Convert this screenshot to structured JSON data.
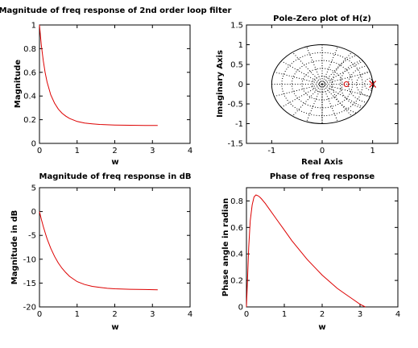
{
  "chart_data": [
    {
      "id": "mag",
      "type": "line",
      "title": "Magnitude of freq response of 2nd order loop filter",
      "xlabel": "w",
      "ylabel": "Magnitude",
      "xlim": [
        0,
        4
      ],
      "ylim": [
        0,
        1
      ],
      "xticks": [
        "0",
        "1",
        "2",
        "3",
        "4"
      ],
      "yticks": [
        "0",
        "0.2",
        "0.4",
        "0.6",
        "0.8",
        "1"
      ],
      "series": [
        {
          "color": "#dd0000",
          "x": [
            0,
            0.05,
            0.1,
            0.15,
            0.2,
            0.3,
            0.4,
            0.5,
            0.6,
            0.7,
            0.8,
            1.0,
            1.2,
            1.4,
            1.6,
            1.8,
            2.0,
            2.4,
            2.8,
            3.14
          ],
          "y": [
            1.0,
            0.83,
            0.7,
            0.6,
            0.52,
            0.41,
            0.34,
            0.29,
            0.255,
            0.23,
            0.21,
            0.185,
            0.172,
            0.165,
            0.16,
            0.157,
            0.155,
            0.153,
            0.152,
            0.152
          ]
        }
      ]
    },
    {
      "id": "pz",
      "type": "scatter",
      "title": "Pole-Zero plot of H(z)",
      "xlabel": "Real Axis",
      "ylabel": "Imaginary Axis",
      "xlim": [
        -1.5,
        1.5
      ],
      "ylim": [
        -1.5,
        1.5
      ],
      "xticks": [
        "-1",
        "0",
        "1"
      ],
      "yticks": [
        "-1.5",
        "-1",
        "-0.5",
        "0",
        "0.5",
        "1",
        "1.5"
      ],
      "zeros": [
        {
          "re": 0.48,
          "im": 0
        }
      ],
      "poles": [
        {
          "re": 1.0,
          "im": 0
        },
        {
          "re": 1.0,
          "im": 0
        }
      ]
    },
    {
      "id": "db",
      "type": "line",
      "title": "Magnitude of freq response in dB",
      "xlabel": "w",
      "ylabel": "Magnitude in dB",
      "xlim": [
        0,
        4
      ],
      "ylim": [
        -20,
        5
      ],
      "xticks": [
        "0",
        "1",
        "2",
        "3",
        "4"
      ],
      "yticks": [
        "-20",
        "-15",
        "-10",
        "-5",
        "0",
        "5"
      ],
      "series": [
        {
          "color": "#dd0000",
          "x": [
            0,
            0.05,
            0.1,
            0.15,
            0.2,
            0.3,
            0.4,
            0.5,
            0.6,
            0.7,
            0.8,
            1.0,
            1.2,
            1.4,
            1.6,
            1.8,
            2.0,
            2.4,
            2.8,
            3.14
          ],
          "y": [
            0,
            -1.6,
            -3.1,
            -4.4,
            -5.7,
            -7.7,
            -9.4,
            -10.8,
            -11.9,
            -12.8,
            -13.6,
            -14.7,
            -15.3,
            -15.7,
            -15.9,
            -16.1,
            -16.2,
            -16.3,
            -16.35,
            -16.4
          ]
        }
      ]
    },
    {
      "id": "phase",
      "type": "line",
      "title": "Phase of freq response",
      "xlabel": "w",
      "ylabel": "Phase angle in radian",
      "xlim": [
        0,
        4
      ],
      "ylim": [
        0,
        0.9
      ],
      "xticks": [
        "0",
        "1",
        "2",
        "3",
        "4"
      ],
      "yticks": [
        "0",
        "0.2",
        "0.4",
        "0.6",
        "0.8"
      ],
      "series": [
        {
          "color": "#dd0000",
          "x": [
            0,
            0.03,
            0.06,
            0.1,
            0.15,
            0.2,
            0.25,
            0.3,
            0.35,
            0.4,
            0.5,
            0.6,
            0.8,
            1.0,
            1.2,
            1.4,
            1.6,
            1.8,
            2.0,
            2.2,
            2.4,
            2.6,
            2.8,
            3.0,
            3.14
          ],
          "y": [
            0,
            0.22,
            0.45,
            0.65,
            0.77,
            0.83,
            0.845,
            0.84,
            0.83,
            0.815,
            0.78,
            0.74,
            0.66,
            0.58,
            0.5,
            0.43,
            0.36,
            0.3,
            0.24,
            0.19,
            0.14,
            0.1,
            0.06,
            0.02,
            0
          ]
        }
      ]
    }
  ]
}
